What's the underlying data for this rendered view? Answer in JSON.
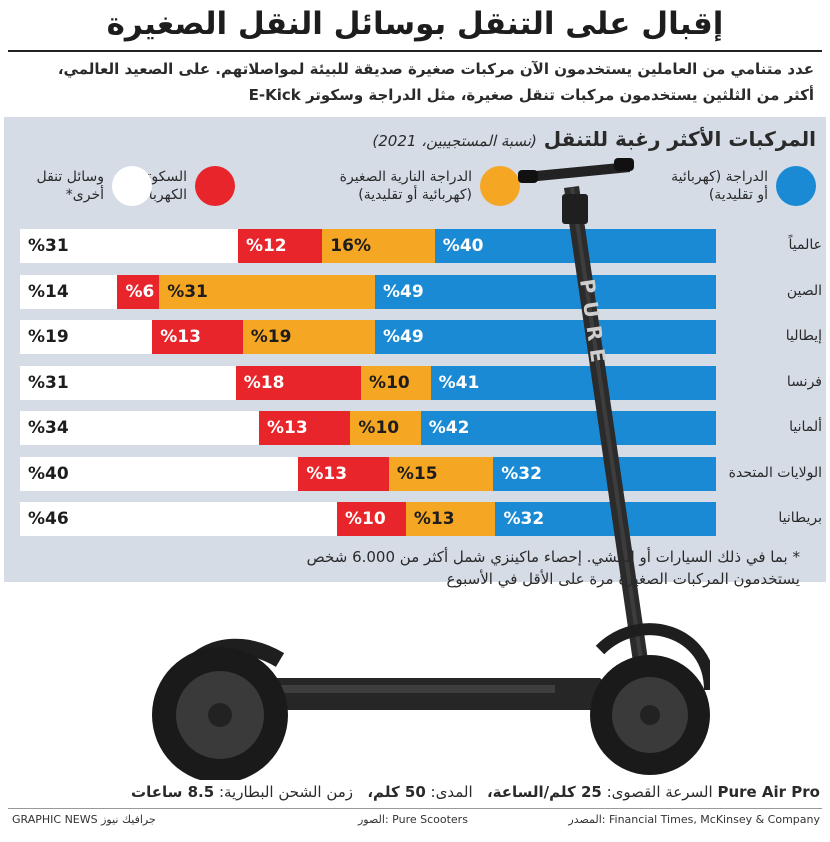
{
  "title": "إقبال على التنقل بوسائل النقل الصغيرة",
  "intro": {
    "line1": "عدد متنامي من العاملين يستخدمون الآن مركبات صغيرة صديقة للبيئة لمواصلاتهم. على الصعيد العالمي،",
    "line2": "أكثر من الثلثين يستخدمون مركبات تنقل صغيرة، مثل الدراجة وسكوتر E-Kick"
  },
  "colors": {
    "bike": "#1a8ad4",
    "moped": "#f5a623",
    "scooter": "#e8252a",
    "other": "#ffffff",
    "panel": "#d5dce6",
    "scooter_body": "#262626"
  },
  "scooter_brand": "PURE",
  "chart_data": {
    "type": "bar",
    "orientation": "horizontal",
    "stacked": true,
    "title": "المركبات الأكثر رغبة للتنقل",
    "subtitle": "(نسبة المستجيبين، 2021)",
    "categories": [
      "عالمياً",
      "الصين",
      "إيطاليا",
      "فرنسا",
      "ألمانيا",
      "الولايات المتحدة",
      "بريطانيا"
    ],
    "series": [
      {
        "name": "الدراجة (كهربائية أو تقليدية)",
        "legend_line1": "الدراجة (كهربائية",
        "legend_line2": "أو تقليدية)",
        "color_key": "bike",
        "values": [
          40,
          49,
          49,
          41,
          42,
          32,
          32
        ],
        "labels": [
          "%40",
          "%49",
          "%49",
          "%41",
          "%42",
          "%32",
          "%32"
        ]
      },
      {
        "name": "الدراجة النارية الصغيرة (كهربائية أو تقليدية)",
        "legend_line1": "الدراجة النارية الصغيرة",
        "legend_line2": "(كهربائية أو تقليدية)",
        "color_key": "moped",
        "values": [
          16,
          31,
          19,
          10,
          10,
          15,
          13
        ],
        "labels": [
          "16%",
          "%31",
          "%19",
          "%10",
          "%10",
          "%15",
          "%13"
        ]
      },
      {
        "name": "السكوتر الكهربائي",
        "legend_line1": "السكوتر",
        "legend_line2": "الكهربائي",
        "color_key": "scooter",
        "values": [
          12,
          6,
          13,
          18,
          13,
          13,
          10
        ],
        "labels": [
          "%12",
          "%6",
          "%13",
          "%18",
          "%13",
          "%13",
          "%10"
        ]
      },
      {
        "name": "وسائل تنقل أخرى*",
        "legend_line1": "وسائل تنقل",
        "legend_line2": "أخرى*",
        "color_key": "other",
        "values": [
          31,
          14,
          19,
          31,
          34,
          40,
          46
        ],
        "labels": [
          "%31",
          "%14",
          "%19",
          "%31",
          "%34",
          "%40",
          "%46"
        ]
      }
    ],
    "xlim": [
      0,
      100
    ],
    "legend": "top"
  },
  "footnote": {
    "line1": "* بما في ذلك السيارات أو المشي. إحصاء ماكينزي شمل أكثر من 6.000 شخص",
    "line2": "يستخدمون المركبات الصغيرة مرة على الأقل في الأسبوع"
  },
  "specs": {
    "model": "Pure Air Pro",
    "speed_label": "السرعة القصوى:",
    "speed_value": "25 كلم/الساعة،",
    "range_label": "المدى:",
    "range_value": "50 كلم،",
    "charge_label": "زمن الشحن البطارية:",
    "charge_value": "8.5 ساعات"
  },
  "credits": {
    "source": "المصدر: Financial Times, McKinsey & Company",
    "photos": "الصور: Pure Scooters",
    "brand": "GRAPHIC NEWS جرافيك نيوز"
  }
}
